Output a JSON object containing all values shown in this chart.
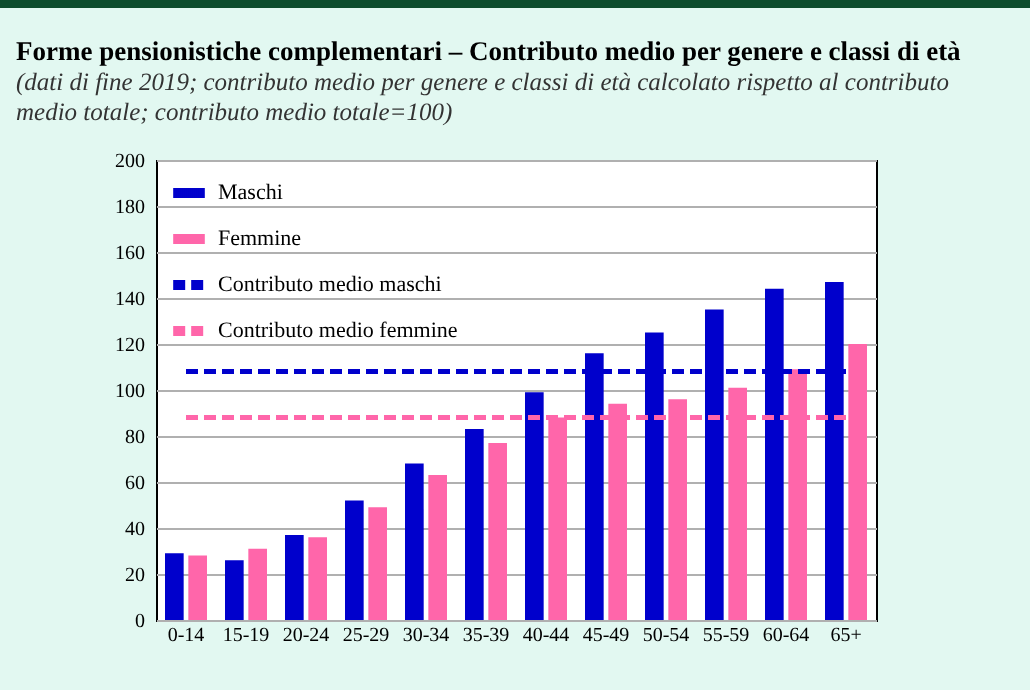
{
  "chart_data": {
    "type": "bar",
    "title": "Forme pensionistiche complementari – Contributo medio per genere e classi di età",
    "subtitle": "(dati di fine 2019; contributo medio per genere e classi di età calcolato rispetto al contributo medio totale; contributo medio totale=100)",
    "categories": [
      "0-14",
      "15-19",
      "20-24",
      "25-29",
      "30-34",
      "35-39",
      "40-44",
      "45-49",
      "50-54",
      "55-59",
      "60-64",
      "65+"
    ],
    "series": [
      {
        "name": "Maschi",
        "color": "#0000cc",
        "values": [
          29,
          26,
          37,
          52,
          68,
          83,
          99,
          116,
          125,
          135,
          144,
          147
        ]
      },
      {
        "name": "Femmine",
        "color": "#ff66aa",
        "values": [
          28,
          31,
          36,
          49,
          63,
          77,
          88,
          94,
          96,
          101,
          109,
          120
        ]
      },
      {
        "name": "Contributo medio maschi",
        "type": "line",
        "color": "#0000cc",
        "values": [
          108,
          108,
          108,
          108,
          108,
          108,
          108,
          108,
          108,
          108,
          108,
          108
        ]
      },
      {
        "name": "Contributo medio femmine",
        "type": "line",
        "color": "#ff66aa",
        "values": [
          88,
          88,
          88,
          88,
          88,
          88,
          88,
          88,
          88,
          88,
          88,
          88
        ]
      }
    ],
    "ylim": [
      0,
      200
    ],
    "yticks": [
      0,
      20,
      40,
      60,
      80,
      100,
      120,
      140,
      160,
      180,
      200
    ],
    "grid": "y",
    "legend": "top left",
    "line_style": "dashed"
  }
}
